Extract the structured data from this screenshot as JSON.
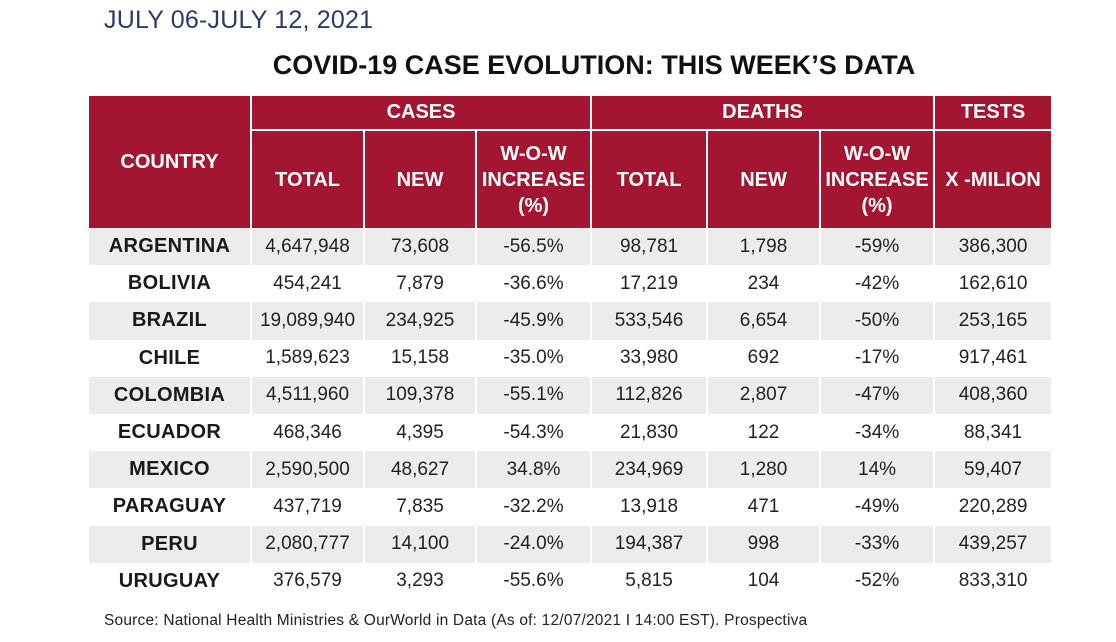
{
  "date_range": "JULY 06-JULY 12, 2021",
  "title": "COVID-19 CASE EVOLUTION: THIS WEEK’S DATA",
  "colors": {
    "header_bg": "#a31530",
    "stripe": "#ececec",
    "date_text": "#2b3a67"
  },
  "header": {
    "country": "COUNTRY",
    "groups": {
      "cases": "CASES",
      "deaths": "DEATHS",
      "tests": "TESTS"
    },
    "cases": {
      "total": "TOTAL",
      "new": "NEW",
      "wow": [
        "W-O-W",
        "INCREASE",
        "(%)"
      ]
    },
    "deaths": {
      "total": "TOTAL",
      "new": "NEW",
      "wow": [
        "W-O-W",
        "INCREASE",
        "(%)"
      ]
    },
    "tests": {
      "xmil": "X -MILION"
    }
  },
  "rows": [
    [
      "ARGENTINA",
      "4,647,948",
      "73,608",
      "-56.5%",
      "98,781",
      "1,798",
      "-59%",
      "386,300"
    ],
    [
      "BOLIVIA",
      "454,241",
      "7,879",
      "-36.6%",
      "17,219",
      "234",
      "-42%",
      "162,610"
    ],
    [
      "BRAZIL",
      "19,089,940",
      "234,925",
      "-45.9%",
      "533,546",
      "6,654",
      "-50%",
      "253,165"
    ],
    [
      "CHILE",
      "1,589,623",
      "15,158",
      "-35.0%",
      "33,980",
      "692",
      "-17%",
      "917,461"
    ],
    [
      "COLOMBIA",
      "4,511,960",
      "109,378",
      "-55.1%",
      "112,826",
      "2,807",
      "-47%",
      "408,360"
    ],
    [
      "ECUADOR",
      "468,346",
      "4,395",
      "-54.3%",
      "21,830",
      "122",
      "-34%",
      "88,341"
    ],
    [
      "MEXICO",
      "2,590,500",
      "48,627",
      "34.8%",
      "234,969",
      "1,280",
      "14%",
      "59,407"
    ],
    [
      "PARAGUAY",
      "437,719",
      "7,835",
      "-32.2%",
      "13,918",
      "471",
      "-49%",
      "220,289"
    ],
    [
      "PERU",
      "2,080,777",
      "14,100",
      "-24.0%",
      "194,387",
      "998",
      "-33%",
      "439,257"
    ],
    [
      "URUGUAY",
      "376,579",
      "3,293",
      "-55.6%",
      "5,815",
      "104",
      "-52%",
      "833,310"
    ]
  ],
  "source": "Source: National Health Ministries & OurWorld in Data (As of: 12/07/2021 I 14:00 EST). Prospectiva"
}
